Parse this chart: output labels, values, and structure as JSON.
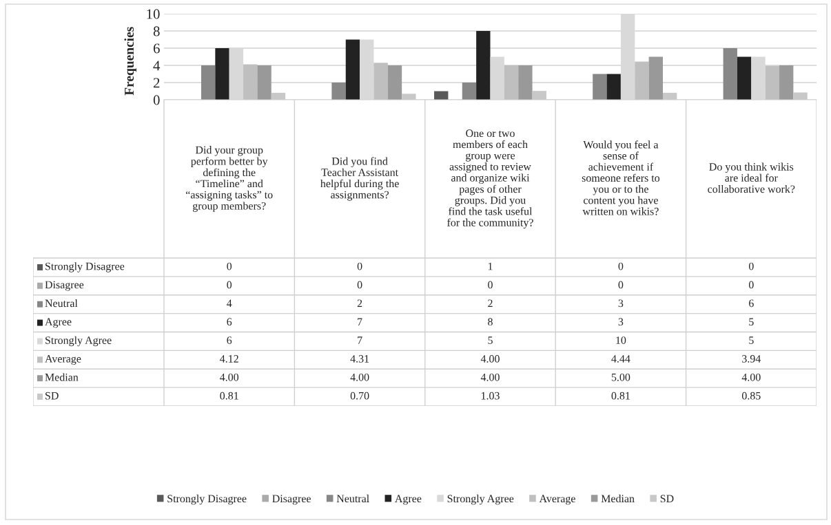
{
  "chart_data": {
    "type": "bar",
    "ylabel": "Frequencies",
    "categories": [
      "Did your group perform better by defining the “Timeline” and “assigning tasks” to group members?",
      "Did you find Teacher Assistant helpful during the assignments?",
      "One or two members of each group were assigned to review and organize wiki pages of other groups. Did you find the task useful for the community?",
      "Would you feel a sense of achievement if someone refers to you or to the content you have written on wikis?",
      "Do you think wikis are ideal for collaborative work?"
    ],
    "series": [
      {
        "name": "Strongly Disagree",
        "color": "#595959",
        "values": [
          0,
          0,
          1,
          0,
          0
        ],
        "value_labels": [
          "0",
          "0",
          "1",
          "0",
          "0"
        ]
      },
      {
        "name": "Disagree",
        "color": "#aaaaaa",
        "values": [
          0,
          0,
          0,
          0,
          0
        ],
        "value_labels": [
          "0",
          "0",
          "0",
          "0",
          "0"
        ]
      },
      {
        "name": "Neutral",
        "color": "#878787",
        "values": [
          4,
          2,
          2,
          3,
          6
        ],
        "value_labels": [
          "4",
          "2",
          "2",
          "3",
          "6"
        ]
      },
      {
        "name": "Agree",
        "color": "#222222",
        "values": [
          6,
          7,
          8,
          3,
          5
        ],
        "value_labels": [
          "6",
          "7",
          "8",
          "3",
          "5"
        ]
      },
      {
        "name": "Strongly Agree",
        "color": "#d9d9d9",
        "values": [
          6,
          7,
          5,
          10,
          5
        ],
        "value_labels": [
          "6",
          "7",
          "5",
          "10",
          "5"
        ]
      },
      {
        "name": "Average",
        "color": "#bfbfbf",
        "values": [
          4.12,
          4.31,
          4.0,
          4.44,
          3.94
        ],
        "value_labels": [
          "4.12",
          "4.31",
          "4.00",
          "4.44",
          "3.94"
        ]
      },
      {
        "name": "Median",
        "color": "#999999",
        "values": [
          4.0,
          4.0,
          4.0,
          5.0,
          4.0
        ],
        "value_labels": [
          "4.00",
          "4.00",
          "4.00",
          "5.00",
          "4.00"
        ]
      },
      {
        "name": "SD",
        "color": "#c8c8c8",
        "values": [
          0.81,
          0.7,
          1.03,
          0.81,
          0.85
        ],
        "value_labels": [
          "0.81",
          "0.70",
          "1.03",
          "0.81",
          "0.85"
        ]
      }
    ],
    "ylim": [
      0,
      10
    ],
    "yticks": [
      0,
      2,
      4,
      6,
      8,
      10
    ],
    "grid": "y",
    "legend": "bottom"
  }
}
